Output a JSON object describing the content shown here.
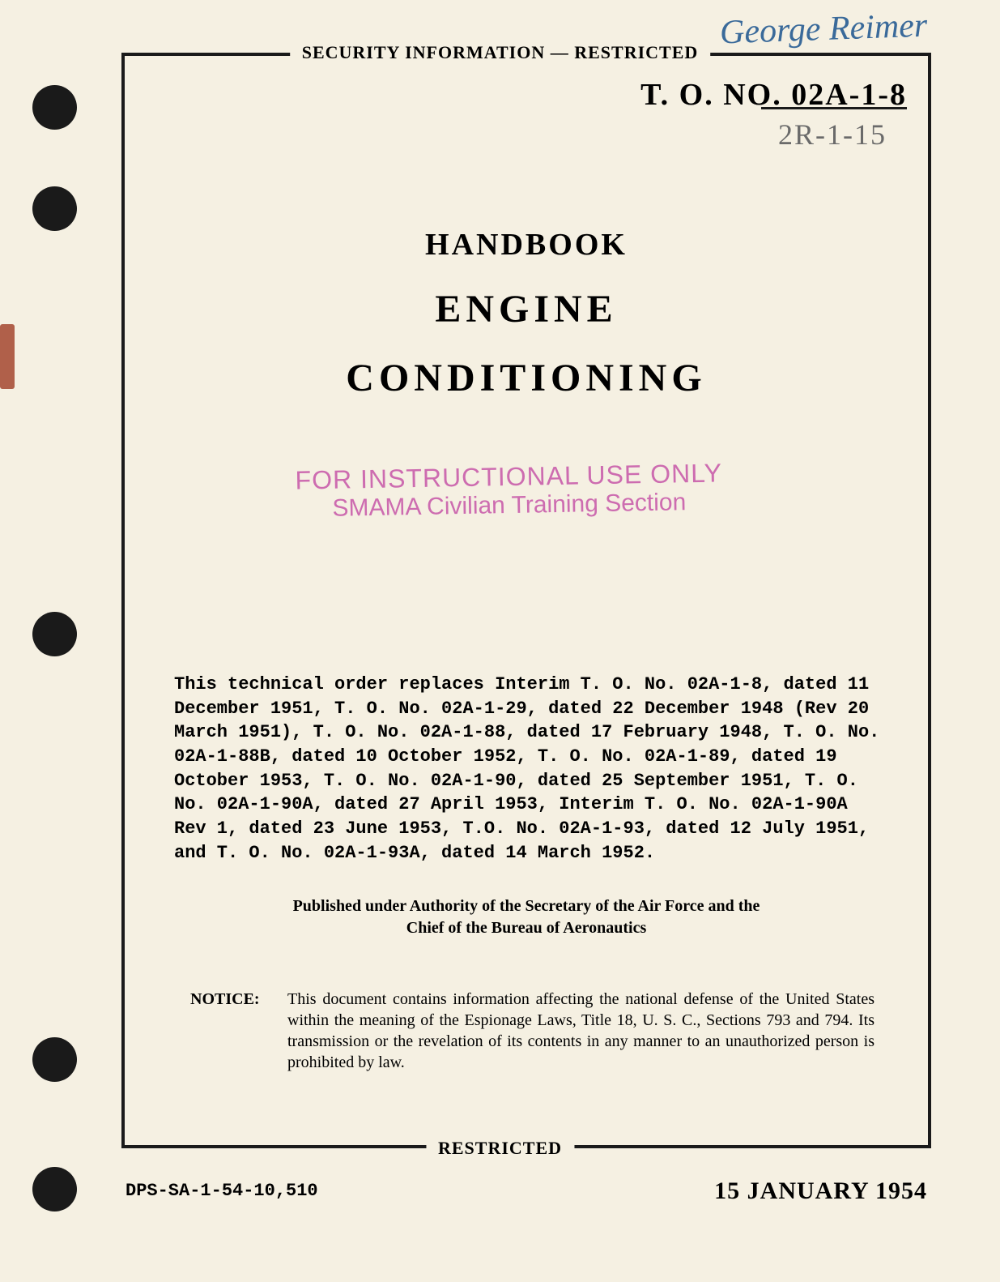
{
  "page": {
    "background_color": "#f5f0e2",
    "paper_color": "#e8e0d0",
    "text_color": "#1a1a1a",
    "stamp_color": "#c040a0",
    "handwriting_color": "#3a6a9a"
  },
  "handwritten": {
    "signature": "George Reimer",
    "number": "2R-1-15"
  },
  "classification": {
    "top": "SECURITY INFORMATION — RESTRICTED",
    "bottom": "RESTRICTED"
  },
  "to_number": {
    "prefix": "T. O. NO.",
    "value": "02A-1-8"
  },
  "title": {
    "line1": "HANDBOOK",
    "line2": "ENGINE",
    "line3": "CONDITIONING"
  },
  "stamp": {
    "line1": "FOR INSTRUCTIONAL USE ONLY",
    "line2": "SMAMA Civilian Training Section"
  },
  "replacement_text": "This technical order replaces Interim T. O. No. 02A-1-8, dated 11 December 1951, T. O. No. 02A-1-29, dated 22 December 1948 (Rev 20 March 1951), T. O. No. 02A-1-88, dated 17 February 1948, T. O. No. 02A-1-88B, dated 10 October 1952, T. O. No. 02A-1-89, dated 19 October 1953, T. O. No. 02A-1-90, dated 25 September 1951, T. O. No. 02A-1-90A, dated 27 April 1953, Interim T. O. No. 02A-1-90A Rev 1, dated 23 June 1953, T.O. No. 02A-1-93, dated 12 July 1951, and T. O. No. 02A-1-93A, dated 14 March 1952.",
  "authority": {
    "line1": "Published under Authority of the Secretary of the Air Force and the",
    "line2": "Chief of the Bureau of Aeronautics"
  },
  "notice": {
    "label": "NOTICE:",
    "text": "This document contains information affecting the national defense of the United States within the meaning of the Espionage Laws, Title 18, U. S. C., Sections 793 and 794. Its transmission or the revelation of its contents in any manner to an unauthorized person is prohibited by law."
  },
  "footer": {
    "left": "DPS-SA-1-54-10,510",
    "right": "15 JANUARY 1954"
  }
}
